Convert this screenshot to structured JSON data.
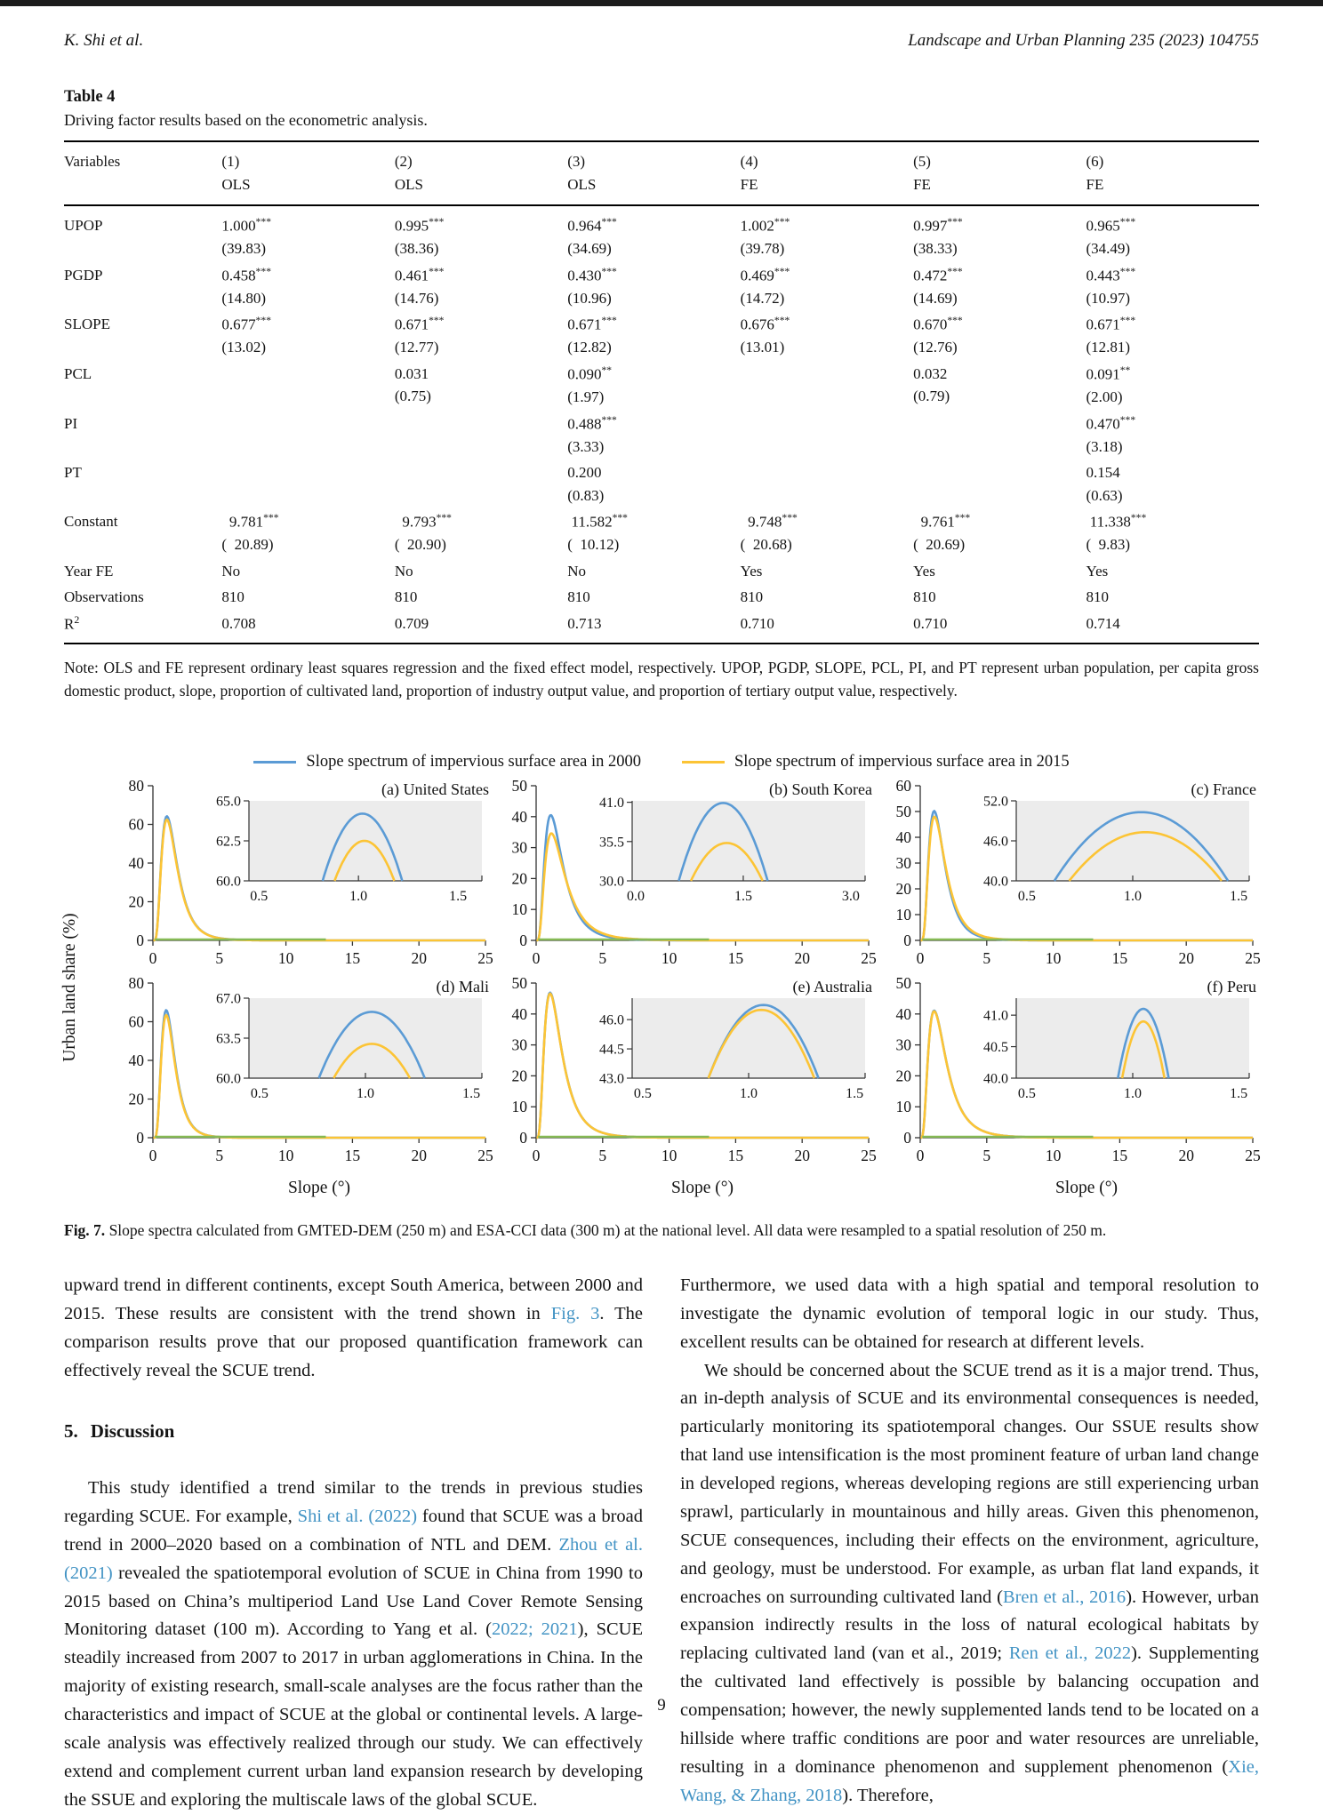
{
  "header": {
    "author": "K. Shi et al.",
    "journal": "Landscape and Urban Planning 235 (2023) 104755"
  },
  "table": {
    "label": "Table 4",
    "caption": "Driving factor results based on the econometric analysis.",
    "var_header": "Variables",
    "col_headers": [
      {
        "num": "(1)",
        "model": "OLS"
      },
      {
        "num": "(2)",
        "model": "OLS"
      },
      {
        "num": "(3)",
        "model": "OLS"
      },
      {
        "num": "(4)",
        "model": "FE"
      },
      {
        "num": "(5)",
        "model": "FE"
      },
      {
        "num": "(6)",
        "model": "FE"
      }
    ],
    "rows": [
      {
        "name": "UPOP",
        "cells": [
          [
            "1.000***",
            "(39.83)"
          ],
          [
            "0.995***",
            "(38.36)"
          ],
          [
            "0.964***",
            "(34.69)"
          ],
          [
            "1.002***",
            "(39.78)"
          ],
          [
            "0.997***",
            "(38.33)"
          ],
          [
            "0.965***",
            "(34.49)"
          ]
        ]
      },
      {
        "name": "PGDP",
        "cells": [
          [
            "0.458***",
            "(14.80)"
          ],
          [
            "0.461***",
            "(14.76)"
          ],
          [
            "0.430***",
            "(10.96)"
          ],
          [
            "0.469***",
            "(14.72)"
          ],
          [
            "0.472***",
            "(14.69)"
          ],
          [
            "0.443***",
            "(10.97)"
          ]
        ]
      },
      {
        "name": "SLOPE",
        "cells": [
          [
            "0.677***",
            "(13.02)"
          ],
          [
            "0.671***",
            "(12.77)"
          ],
          [
            "0.671***",
            "(12.82)"
          ],
          [
            "0.676***",
            "(13.01)"
          ],
          [
            "0.670***",
            "(12.76)"
          ],
          [
            "0.671***",
            "(12.81)"
          ]
        ]
      },
      {
        "name": "PCL",
        "cells": [
          [
            "",
            ""
          ],
          [
            "0.031",
            "(0.75)"
          ],
          [
            "0.090**",
            "(1.97)"
          ],
          [
            "",
            ""
          ],
          [
            "0.032",
            "(0.79)"
          ],
          [
            "0.091**",
            "(2.00)"
          ]
        ]
      },
      {
        "name": "PI",
        "cells": [
          [
            "",
            ""
          ],
          [
            "",
            ""
          ],
          [
            "0.488***",
            "(3.33)"
          ],
          [
            "",
            ""
          ],
          [
            "",
            ""
          ],
          [
            "0.470***",
            "(3.18)"
          ]
        ]
      },
      {
        "name": "PT",
        "cells": [
          [
            "",
            ""
          ],
          [
            "",
            ""
          ],
          [
            "0.200",
            "(0.83)"
          ],
          [
            "",
            ""
          ],
          [
            "",
            ""
          ],
          [
            "0.154",
            "(0.63)"
          ]
        ]
      },
      {
        "name": "Constant",
        "cells": [
          [
            "  9.781***",
            "(  20.89)"
          ],
          [
            "  9.793***",
            "(  20.90)"
          ],
          [
            " 11.582***",
            "(  10.12)"
          ],
          [
            "  9.748***",
            "(  20.68)"
          ],
          [
            "  9.761***",
            "(  20.69)"
          ],
          [
            " 11.338***",
            "(  9.83)"
          ]
        ]
      },
      {
        "name": "Year FE",
        "cells": [
          [
            "No"
          ],
          [
            "No"
          ],
          [
            "No"
          ],
          [
            "Yes"
          ],
          [
            "Yes"
          ],
          [
            "Yes"
          ]
        ]
      },
      {
        "name": "Observations",
        "cells": [
          [
            "810"
          ],
          [
            "810"
          ],
          [
            "810"
          ],
          [
            "810"
          ],
          [
            "810"
          ],
          [
            "810"
          ]
        ]
      },
      {
        "name": "R",
        "name_sup": "2",
        "cells": [
          [
            "0.708"
          ],
          [
            "0.709"
          ],
          [
            "0.713"
          ],
          [
            "0.710"
          ],
          [
            "0.710"
          ],
          [
            "0.714"
          ]
        ]
      }
    ],
    "note": "Note: OLS and FE represent ordinary least squares regression and the fixed effect model, respectively. UPOP, PGDP, SLOPE, PCL, PI, and PT represent urban population, per capita gross domestic product, slope, proportion of cultivated land, proportion of industry output value, and proportion of tertiary output value, respectively."
  },
  "figure": {
    "legend": [
      {
        "label": "Slope spectrum of impervious surface area in 2000",
        "color": "#5b9bd5"
      },
      {
        "label": "Slope spectrum of impervious surface area in 2015",
        "color": "#fcc435"
      }
    ],
    "ylabel": "Urban land share (%)",
    "xlabel": "Slope (°)",
    "colors": {
      "s2000": "#5b9bd5",
      "s2015": "#fcc435",
      "near_zero": "#85b954",
      "inset_bg": "#ececec"
    },
    "caption_label": "Fig. 7.",
    "caption_text": "Slope spectra calculated from GMTED-DEM (250 m) and ESA-CCI data (300 m) at the national level. All data were resampled to a spatial resolution of 250 m."
  },
  "chart_data": [
    {
      "type": "line",
      "title": "(a) United States",
      "xlim": [
        0,
        25
      ],
      "xticks": [
        0,
        5,
        10,
        15,
        20,
        25
      ],
      "ylim": [
        0,
        80
      ],
      "yticks": [
        0,
        20,
        40,
        60,
        80
      ],
      "series": [
        {
          "name": "impervious surface 2000",
          "peak": 64.2,
          "peak_x": 1.05,
          "width": 0.55
        },
        {
          "name": "impervious surface 2015",
          "peak": 62.5,
          "peak_x": 1.05,
          "width": 0.55
        }
      ],
      "near_zero_line_x_end": 13,
      "inset": {
        "xlim": [
          0.45,
          1.62
        ],
        "xticks": [
          "0.5",
          "1.0",
          "1.5"
        ],
        "ylim": [
          60,
          65
        ],
        "yticks": [
          "60.0",
          "62.5",
          "65.0"
        ],
        "series": [
          {
            "peak": 64.2,
            "x0": 1.02,
            "half": 0.2
          },
          {
            "peak": 62.5,
            "x0": 1.03,
            "half": 0.15
          }
        ]
      }
    },
    {
      "type": "line",
      "title": "(b) South Korea",
      "xlim": [
        0,
        25
      ],
      "xticks": [
        0,
        5,
        10,
        15,
        20,
        25
      ],
      "ylim": [
        0,
        50
      ],
      "yticks": [
        0,
        10,
        20,
        30,
        40,
        50
      ],
      "series": [
        {
          "name": "impervious surface 2000",
          "peak": 40.5,
          "peak_x": 1.1,
          "width": 0.6
        },
        {
          "name": "impervious surface 2015",
          "peak": 34.6,
          "peak_x": 1.15,
          "width": 0.63
        }
      ],
      "near_zero_line_x_end": 13,
      "inset": {
        "xlim": [
          -0.05,
          3.2
        ],
        "xticks": [
          "0.0",
          "1.5",
          "3.0"
        ],
        "ylim": [
          30,
          41.2
        ],
        "yticks": [
          "30.0",
          "35.5",
          "41.0"
        ],
        "series": [
          {
            "peak": 40.9,
            "x0": 1.22,
            "half": 0.62
          },
          {
            "peak": 35.3,
            "x0": 1.27,
            "half": 0.5
          }
        ]
      }
    },
    {
      "type": "line",
      "title": "(c) France",
      "xlim": [
        0,
        25
      ],
      "xticks": [
        0,
        5,
        10,
        15,
        20,
        25
      ],
      "ylim": [
        0,
        60
      ],
      "yticks": [
        0,
        10,
        20,
        30,
        40,
        50,
        60
      ],
      "series": [
        {
          "name": "impervious surface 2000",
          "peak": 50.2,
          "peak_x": 1.05,
          "width": 0.55
        },
        {
          "name": "impervious surface 2015",
          "peak": 48.0,
          "peak_x": 1.07,
          "width": 0.57
        }
      ],
      "near_zero_line_x_end": 13,
      "inset": {
        "xlim": [
          0.45,
          1.55
        ],
        "xticks": [
          "0.5",
          "1.0",
          "1.5"
        ],
        "ylim": [
          40,
          52
        ],
        "yticks": [
          "40.0",
          "46.0",
          "52.0"
        ],
        "series": [
          {
            "peak": 50.3,
            "x0": 1.04,
            "half": 0.41
          },
          {
            "peak": 47.3,
            "x0": 1.06,
            "half": 0.36
          }
        ]
      }
    },
    {
      "type": "line",
      "title": "(d) Mali",
      "xlim": [
        0,
        25
      ],
      "xticks": [
        0,
        5,
        10,
        15,
        20,
        25
      ],
      "ylim": [
        0,
        80
      ],
      "yticks": [
        0,
        20,
        40,
        60,
        80
      ],
      "series": [
        {
          "name": "impervious surface 2000",
          "peak": 66.0,
          "peak_x": 1.0,
          "width": 0.5
        },
        {
          "name": "impervious surface 2015",
          "peak": 63.5,
          "peak_x": 1.0,
          "width": 0.5
        }
      ],
      "near_zero_line_x_end": 13,
      "inset": {
        "xlim": [
          0.45,
          1.55
        ],
        "xticks": [
          "0.5",
          "1.0",
          "1.5"
        ],
        "ylim": [
          60,
          67
        ],
        "yticks": [
          "60.0",
          "63.5",
          "67.0"
        ],
        "series": [
          {
            "peak": 65.8,
            "x0": 1.03,
            "half": 0.25
          },
          {
            "peak": 63.0,
            "x0": 1.03,
            "half": 0.18
          }
        ]
      }
    },
    {
      "type": "line",
      "title": "(e) Australia",
      "xlim": [
        0,
        25
      ],
      "xticks": [
        0,
        5,
        10,
        15,
        20,
        25
      ],
      "ylim": [
        0,
        50
      ],
      "yticks": [
        0,
        10,
        20,
        30,
        40,
        50
      ],
      "series": [
        {
          "name": "impervious surface 2000",
          "peak": 46.9,
          "peak_x": 1.05,
          "width": 0.6
        },
        {
          "name": "impervious surface 2015",
          "peak": 46.6,
          "peak_x": 1.05,
          "width": 0.6
        }
      ],
      "near_zero_line_x_end": 13,
      "inset": {
        "xlim": [
          0.45,
          1.55
        ],
        "xticks": [
          "0.5",
          "1.0",
          "1.5"
        ],
        "ylim": [
          43,
          47.1
        ],
        "yticks": [
          "43.0",
          "44.5",
          "46.0"
        ],
        "series": [
          {
            "peak": 46.75,
            "x0": 1.07,
            "half": 0.26
          },
          {
            "peak": 46.5,
            "x0": 1.06,
            "half": 0.25
          }
        ]
      }
    },
    {
      "type": "line",
      "title": "(f) Peru",
      "xlim": [
        0,
        25
      ],
      "xticks": [
        0,
        5,
        10,
        15,
        20,
        25
      ],
      "ylim": [
        0,
        50
      ],
      "yticks": [
        0,
        10,
        20,
        30,
        40,
        50
      ],
      "series": [
        {
          "name": "impervious surface 2000",
          "peak": 41.1,
          "peak_x": 1.05,
          "width": 0.62
        },
        {
          "name": "impervious surface 2015",
          "peak": 40.9,
          "peak_x": 1.05,
          "width": 0.62
        }
      ],
      "near_zero_line_x_end": 13,
      "inset": {
        "xlim": [
          0.45,
          1.55
        ],
        "xticks": [
          "0.5",
          "1.0",
          "1.5"
        ],
        "ylim": [
          40,
          41.27
        ],
        "yticks": [
          "40.0",
          "40.5",
          "41.0"
        ],
        "series": [
          {
            "peak": 41.1,
            "x0": 1.05,
            "half": 0.12
          },
          {
            "peak": 40.9,
            "x0": 1.05,
            "half": 0.1
          }
        ]
      }
    }
  ],
  "body": {
    "left": {
      "p1": [
        {
          "t": "upward trend in different continents, except South America, between 2000 and 2015. These results are consistent with the trend shown in "
        },
        {
          "t": "Fig. 3",
          "link": true
        },
        {
          "t": ". The comparison results prove that our proposed quantification framework can effectively reveal the SCUE trend."
        }
      ],
      "heading": {
        "num": "5.",
        "text": "Discussion"
      },
      "p2": [
        {
          "t": "This study identified a trend similar to the trends in previous studies regarding SCUE. For example, "
        },
        {
          "t": "Shi et al. (2022)",
          "link": true
        },
        {
          "t": " found that SCUE was a broad trend in 2000–2020 based on a combination of NTL and DEM. "
        },
        {
          "t": "Zhou et al. (2021)",
          "link": true
        },
        {
          "t": " revealed the spatiotemporal evolution of SCUE in China from 1990 to 2015 based on China’s multiperiod Land Use Land Cover Remote Sensing Monitoring dataset (100 m). According to Yang et al. ("
        },
        {
          "t": "2022; 2021",
          "link": true
        },
        {
          "t": "), SCUE steadily increased from 2007 to 2017 in urban agglomerations in China. In the majority of existing research, small-scale analyses are the focus rather than the characteristics and impact of SCUE at the global or continental levels. A large-scale analysis was effectively realized through our study. We can effectively extend and complement current urban land expansion research by developing the SSUE and exploring the multiscale laws of the global SCUE."
        }
      ]
    },
    "right": {
      "p1": [
        {
          "t": "Furthermore, we used data with a high spatial and temporal resolution to investigate the dynamic evolution of temporal logic in our study. Thus, excellent results can be obtained for research at different levels."
        }
      ],
      "p2": [
        {
          "t": "We should be concerned about the SCUE trend as it is a major trend. Thus, an in-depth analysis of SCUE and its environmental consequences is needed, particularly monitoring its spatiotemporal changes. Our SSUE results show that land use intensification is the most prominent feature of urban land change in developed regions, whereas developing regions are still experiencing urban sprawl, particularly in mountainous and hilly areas. Given this phenomenon, SCUE consequences, including their effects on the environment, agriculture, and geology, must be understood. For example, as urban flat land expands, it encroaches on surrounding cultivated land ("
        },
        {
          "t": "Bren et al., 2016",
          "link": true
        },
        {
          "t": "). However, urban expansion indirectly results in the loss of natural ecological habitats by replacing cultivated land (van et al., 2019; "
        },
        {
          "t": "Ren et al., 2022",
          "link": true
        },
        {
          "t": "). Supplementing the cultivated land effectively is possible by balancing occupation and compensation; however, the newly supplemented lands tend to be located on a hillside where traffic conditions are poor and water resources are unreliable, resulting in a dominance phenomenon and supplement phenomenon ("
        },
        {
          "t": "Xie, Wang, & Zhang, 2018",
          "link": true
        },
        {
          "t": "). Therefore,"
        }
      ]
    }
  },
  "page_number": "9"
}
